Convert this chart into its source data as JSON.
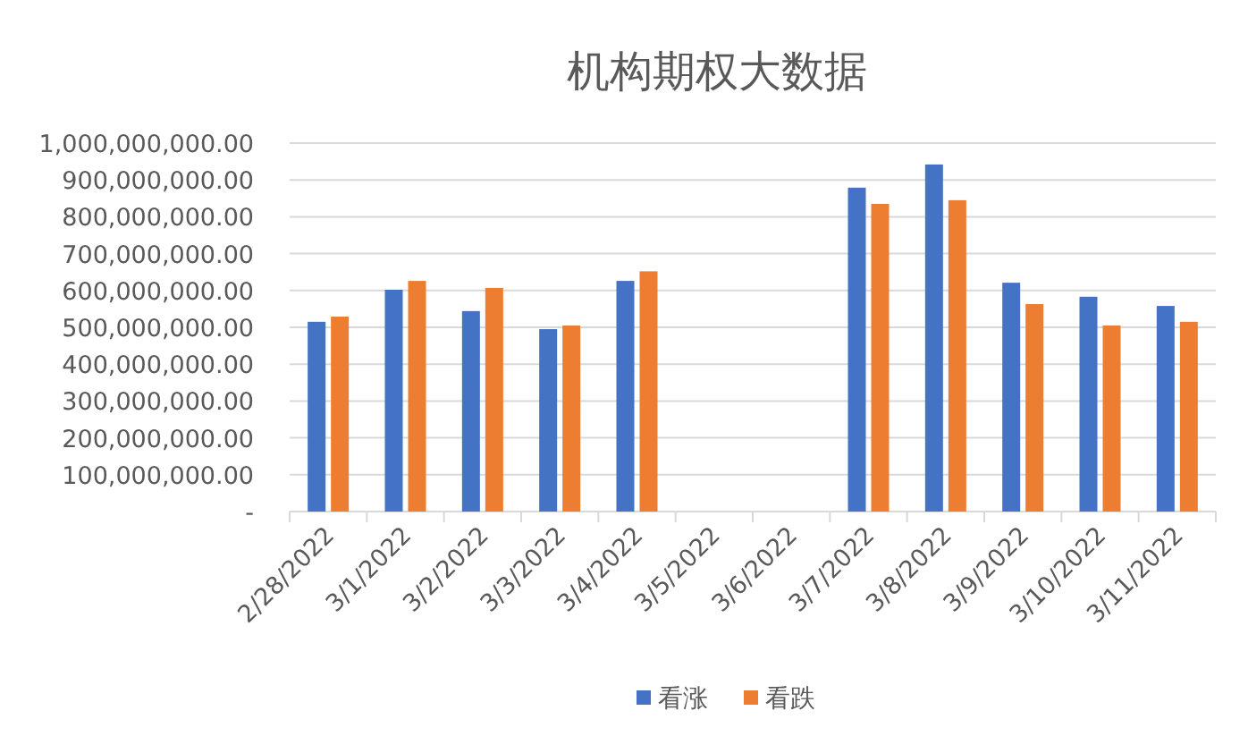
{
  "chart_data": {
    "type": "bar",
    "title": "机构期权大数据",
    "categories": [
      "2/28/2022",
      "3/1/2022",
      "3/2/2022",
      "3/3/2022",
      "3/4/2022",
      "3/5/2022",
      "3/6/2022",
      "3/7/2022",
      "3/8/2022",
      "3/9/2022",
      "3/10/2022",
      "3/11/2022"
    ],
    "series": [
      {
        "name": "看涨",
        "color": "#4472c4",
        "values": [
          515000000,
          602000000,
          544000000,
          495000000,
          626000000,
          null,
          null,
          879000000,
          942000000,
          621000000,
          583000000,
          558000000
        ]
      },
      {
        "name": "看跌",
        "color": "#ed7d31",
        "values": [
          529000000,
          626000000,
          607000000,
          505000000,
          652000000,
          null,
          null,
          835000000,
          845000000,
          563000000,
          505000000,
          515000000
        ]
      }
    ],
    "ylim": [
      0,
      1000000000
    ],
    "yticks": [
      {
        "value": 0,
        "label": "-"
      },
      {
        "value": 100000000,
        "label": "100,000,000.00"
      },
      {
        "value": 200000000,
        "label": "200,000,000.00"
      },
      {
        "value": 300000000,
        "label": "300,000,000.00"
      },
      {
        "value": 400000000,
        "label": "400,000,000.00"
      },
      {
        "value": 500000000,
        "label": "500,000,000.00"
      },
      {
        "value": 600000000,
        "label": "600,000,000.00"
      },
      {
        "value": 700000000,
        "label": "700,000,000.00"
      },
      {
        "value": 800000000,
        "label": "800,000,000.00"
      },
      {
        "value": 900000000,
        "label": "900,000,000.00"
      },
      {
        "value": 1000000000,
        "label": "1,000,000,000.00"
      }
    ],
    "grid": "y",
    "legend": "bottom"
  }
}
